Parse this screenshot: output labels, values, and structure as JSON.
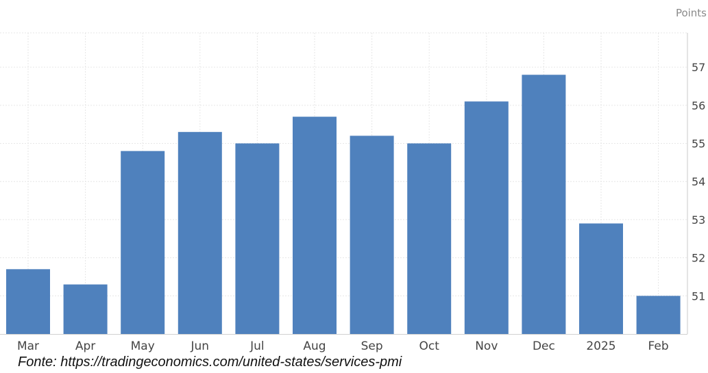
{
  "chart_data": {
    "type": "bar",
    "unit": "Points",
    "categories": [
      "Mar",
      "Apr",
      "May",
      "Jun",
      "Jul",
      "Aug",
      "Sep",
      "Oct",
      "Nov",
      "Dec",
      "2025",
      "Feb"
    ],
    "values": [
      51.7,
      51.3,
      54.8,
      55.3,
      55.0,
      55.7,
      55.2,
      55.0,
      56.1,
      56.8,
      52.9,
      51.0
    ],
    "ylim": [
      50.0,
      57.9
    ],
    "yticks": [
      51,
      52,
      53,
      54,
      55,
      56,
      57
    ],
    "grid": true,
    "bar_color": "#4f81bd",
    "grid_color": "#e6e6e6"
  },
  "source_text": "Fonte: https://tradingeconomics.com/united-states/services-pmi"
}
